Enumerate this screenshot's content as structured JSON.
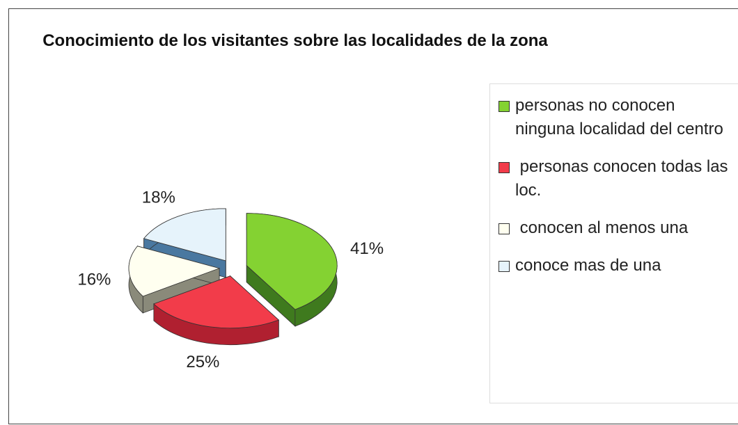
{
  "chart_data": {
    "type": "pie3d",
    "title": "Conocimiento de los visitantes sobre las localidades de la zona",
    "categories": [
      "personas no conocen ninguna localidad del centro",
      " personas conocen todas las loc.",
      " conocen al menos una",
      "conoce mas de una"
    ],
    "values": [
      41,
      25,
      16,
      18
    ],
    "value_labels": [
      "41%",
      "25%",
      "16%",
      "18%"
    ],
    "colors": [
      "#84d232",
      "#f23c4a",
      "#fffff0",
      "#e6f3fb"
    ],
    "legend": "right"
  }
}
